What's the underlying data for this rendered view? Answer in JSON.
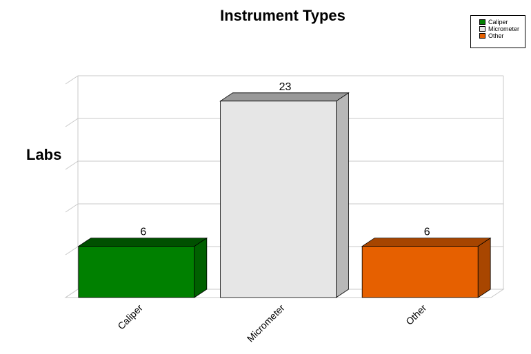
{
  "chart_data": {
    "type": "bar",
    "title": "Instrument Types",
    "ylabel": "Labs",
    "xlabel": "",
    "categories": [
      "Caliper",
      "Micrometer",
      "Other"
    ],
    "values": [
      6,
      23,
      6
    ],
    "ylim": [
      0,
      25
    ],
    "grid": true,
    "legend_placement": "top-right",
    "colors": [
      "#008000",
      "#e6e6e6",
      "#e66000"
    ],
    "side_colors": [
      "#006000",
      "#b8b8b8",
      "#a84600"
    ],
    "top_colors": [
      "#005000",
      "#999999",
      "#a64500"
    ]
  }
}
